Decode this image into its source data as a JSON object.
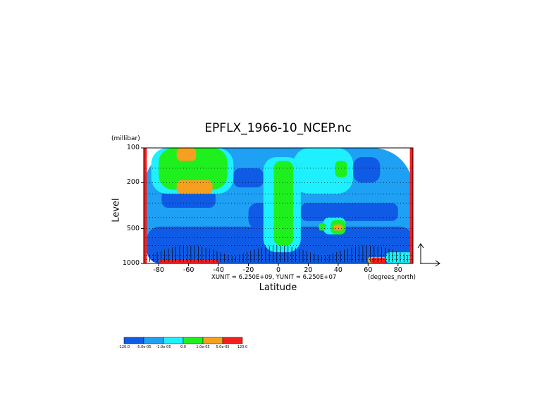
{
  "chart_data": {
    "type": "heatmap",
    "title": "EPFLX_1966-10_NCEP.nc",
    "ylabel": "Level",
    "y_unit": "(millibar)",
    "xlabel": "Latitude",
    "x_unit": "(degrees_north)",
    "vector_units": "XUNIT = 6.250E+09, YUNIT = 6.250E+07",
    "xlim": [
      -90,
      90
    ],
    "ylim": [
      1000,
      100
    ],
    "y_scale": "log",
    "x_ticks": [
      "-80",
      "-60",
      "-40",
      "-20",
      "0",
      "20",
      "40",
      "60",
      "80"
    ],
    "y_ticks": [
      "100",
      "200",
      "500",
      "1000"
    ],
    "grid": "dotted horizontal lines at 100, 150, 200, 250, 300, 400, 500, 600, 700, 850, 925 mb",
    "colorbar": {
      "levels": [
        "-120.0",
        "-5.0e-05",
        "-1.0e-05",
        "0.0",
        "1.0e-05",
        "5.0e-05",
        "120.0"
      ],
      "colors": [
        "#0f5be6",
        "#1ea0f5",
        "#1ef0ff",
        "#1ef01e",
        "#f5a01e",
        "#f51e1e"
      ]
    },
    "regions": [
      {
        "class": 1,
        "lat": [
          -90,
          90
        ],
        "p": [
          1000,
          100
        ]
      },
      {
        "class": 0,
        "lat": [
          -88,
          90
        ],
        "p": [
          1000,
          480
        ]
      },
      {
        "class": 0,
        "lat": [
          -78,
          -42
        ],
        "p": [
          330,
          230
        ]
      },
      {
        "class": 0,
        "lat": [
          -20,
          5
        ],
        "p": [
          500,
          300
        ]
      },
      {
        "class": 0,
        "lat": [
          15,
          80
        ],
        "p": [
          430,
          300
        ]
      },
      {
        "class": 0,
        "lat": [
          -30,
          -10
        ],
        "p": [
          220,
          150
        ]
      },
      {
        "class": 0,
        "lat": [
          50,
          68
        ],
        "p": [
          200,
          120
        ]
      },
      {
        "class": 2,
        "lat": [
          -85,
          -30
        ],
        "p": [
          250,
          100
        ]
      },
      {
        "class": 2,
        "lat": [
          10,
          50
        ],
        "p": [
          250,
          100
        ]
      },
      {
        "class": 2,
        "lat": [
          -10,
          15
        ],
        "p": [
          800,
          120
        ]
      },
      {
        "class": 2,
        "lat": [
          30,
          45
        ],
        "p": [
          560,
          400
        ]
      },
      {
        "class": 3,
        "lat": [
          -80,
          -34
        ],
        "p": [
          230,
          100
        ]
      },
      {
        "class": 3,
        "lat": [
          -3,
          10
        ],
        "p": [
          700,
          130
        ]
      },
      {
        "class": 3,
        "lat": [
          38,
          46
        ],
        "p": [
          180,
          130
        ]
      },
      {
        "class": 3,
        "lat": [
          27,
          32
        ],
        "p": [
          520,
          450
        ]
      },
      {
        "class": 3,
        "lat": [
          35,
          45
        ],
        "p": [
          560,
          420
        ]
      },
      {
        "class": 4,
        "lat": [
          -68,
          -55
        ],
        "p": [
          130,
          100
        ]
      },
      {
        "class": 4,
        "lat": [
          -68,
          -44
        ],
        "p": [
          250,
          190
        ]
      },
      {
        "class": 4,
        "lat": [
          37,
          43
        ],
        "p": [
          520,
          460
        ]
      },
      {
        "class": 4,
        "lat": [
          60,
          72
        ],
        "p": [
          1000,
          880
        ]
      },
      {
        "class": 5,
        "lat": [
          -90,
          -88
        ],
        "p": [
          1000,
          100
        ]
      },
      {
        "class": 5,
        "lat": [
          88,
          90
        ],
        "p": [
          1000,
          100
        ]
      },
      {
        "class": 5,
        "lat": [
          -80,
          -40
        ],
        "p": [
          1000,
          920
        ]
      },
      {
        "class": 5,
        "lat": [
          62,
          72
        ],
        "p": [
          1000,
          900
        ]
      },
      {
        "class": 2,
        "lat": [
          72,
          90
        ],
        "p": [
          1000,
          800
        ]
      }
    ],
    "vector_columns": {
      "lat_start": -86,
      "lat_end": 88,
      "step": 2.5,
      "p_from": 1000,
      "p_to": 700
    }
  }
}
